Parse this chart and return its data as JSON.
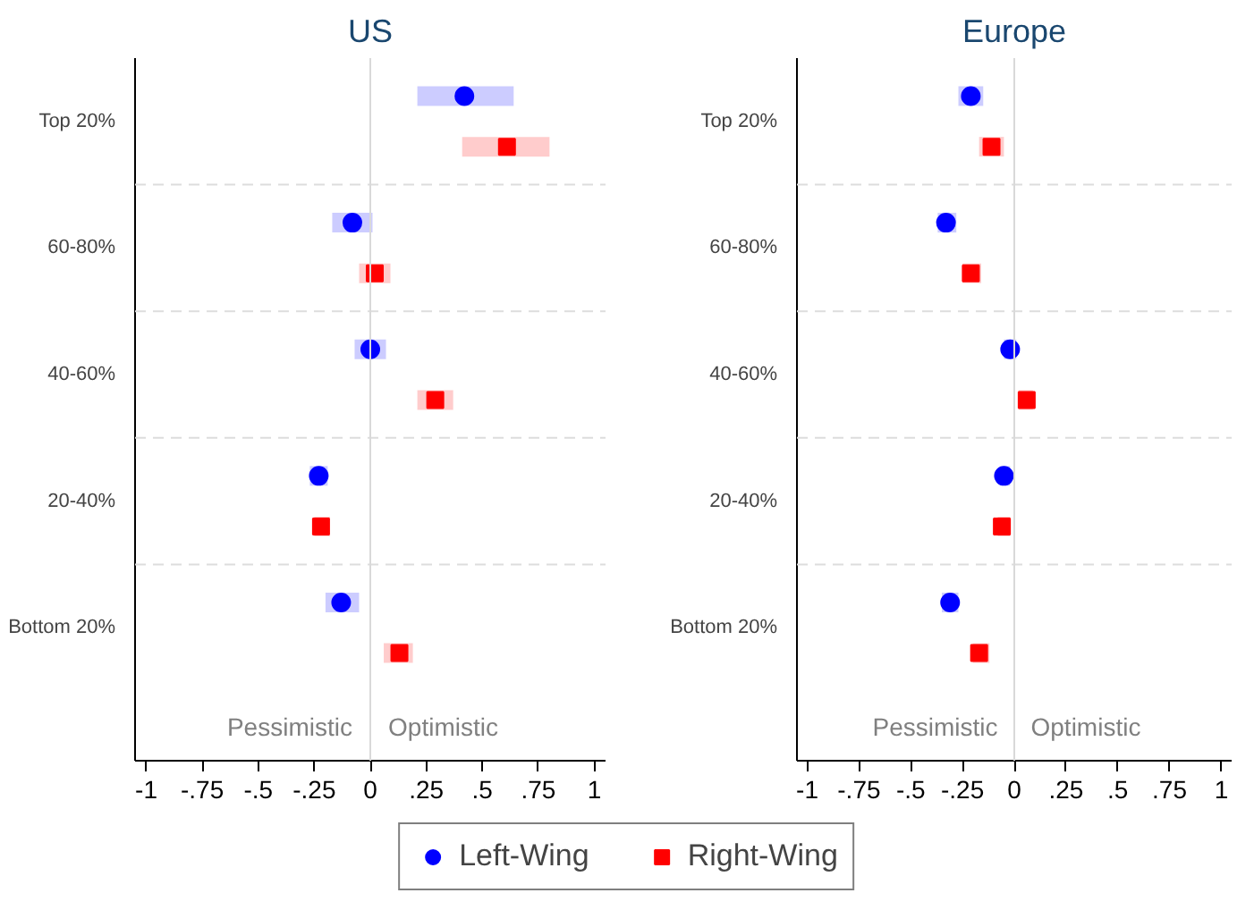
{
  "chart_data": [
    {
      "type": "scatter",
      "title": "US",
      "orientation": "horizontal",
      "categories": [
        "Top 20%",
        "60-80%",
        "40-60%",
        "20-40%",
        "Bottom 20%"
      ],
      "xlim": [
        -1.05,
        1.05
      ],
      "xticks": [
        {
          "value": -1,
          "label": "-1"
        },
        {
          "value": -0.75,
          "label": "-.75"
        },
        {
          "value": -0.5,
          "label": "-.5"
        },
        {
          "value": -0.25,
          "label": "-.25"
        },
        0,
        {
          "value": 0.25,
          "label": ".25"
        },
        {
          "value": 0.5,
          "label": ".5"
        },
        {
          "value": 0.75,
          "label": ".75"
        },
        1
      ],
      "grid": "y",
      "legend": "bottom",
      "ref_lines": [
        {
          "axis": "x",
          "value": 0,
          "color": "#d9d9d9"
        }
      ],
      "annotations": [
        "Pessimistic",
        "Optimistic"
      ],
      "series": [
        {
          "name": "Left-Wing",
          "color": "#0000ff",
          "marker": "circle",
          "values": [
            0.42,
            -0.08,
            0.0,
            -0.23,
            -0.13
          ],
          "errors": [
            [
              0.21,
              0.64
            ],
            [
              -0.17,
              0.01
            ],
            [
              -0.07,
              0.07
            ],
            [
              -0.27,
              -0.19
            ],
            [
              -0.2,
              -0.05
            ]
          ]
        },
        {
          "name": "Right-Wing",
          "color": "#ff0000",
          "marker": "square",
          "values": [
            0.61,
            0.02,
            0.29,
            -0.22,
            0.13
          ],
          "errors": [
            [
              0.41,
              0.8
            ],
            [
              -0.05,
              0.09
            ],
            [
              0.21,
              0.37
            ],
            [
              -0.25,
              -0.18
            ],
            [
              0.06,
              0.19
            ]
          ]
        }
      ]
    },
    {
      "type": "scatter",
      "title": "Europe",
      "orientation": "horizontal",
      "categories": [
        "Top 20%",
        "60-80%",
        "40-60%",
        "20-40%",
        "Bottom 20%"
      ],
      "xlim": [
        -1.05,
        1.05
      ],
      "xticks": [
        {
          "value": -1,
          "label": "-1"
        },
        {
          "value": -0.75,
          "label": "-.75"
        },
        {
          "value": -0.5,
          "label": "-.5"
        },
        {
          "value": -0.25,
          "label": "-.25"
        },
        0,
        {
          "value": 0.25,
          "label": ".25"
        },
        {
          "value": 0.5,
          "label": ".5"
        },
        {
          "value": 0.75,
          "label": ".75"
        },
        1
      ],
      "grid": "y",
      "ref_lines": [
        {
          "axis": "x",
          "value": 0,
          "color": "#d9d9d9"
        }
      ],
      "annotations": [
        "Pessimistic",
        "Optimistic"
      ],
      "series": [
        {
          "color": "#0000ff",
          "marker": "circle",
          "values": [
            -0.21,
            -0.33,
            -0.02,
            -0.05,
            -0.31
          ],
          "errors": [
            [
              -0.27,
              -0.15
            ],
            [
              -0.37,
              -0.28
            ],
            [
              -0.05,
              0.01
            ],
            [
              -0.07,
              -0.02
            ],
            [
              -0.35,
              -0.27
            ]
          ]
        },
        {
          "color": "#ff0000",
          "marker": "square",
          "values": [
            -0.11,
            -0.21,
            0.06,
            -0.06,
            -0.17
          ],
          "errors": [
            [
              -0.17,
              -0.05
            ],
            [
              -0.25,
              -0.16
            ],
            [
              0.02,
              0.09
            ],
            [
              -0.08,
              -0.02
            ],
            [
              -0.2,
              -0.12
            ]
          ]
        }
      ]
    }
  ]
}
